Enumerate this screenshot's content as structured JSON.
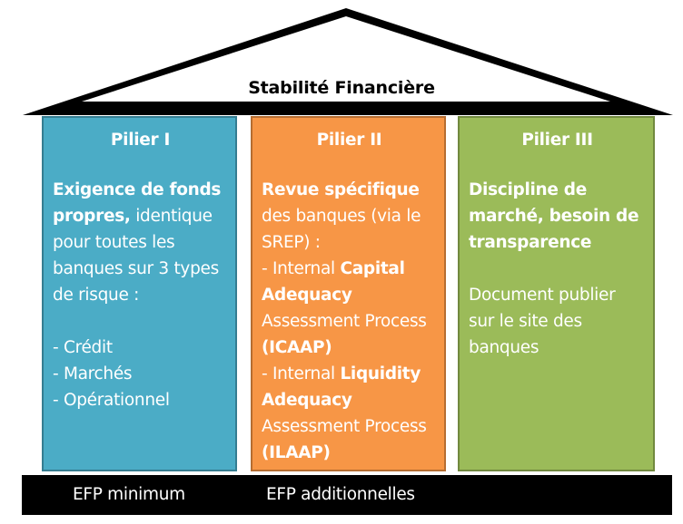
{
  "roof": {
    "title": "Stabilité Financière",
    "color": "#000000"
  },
  "pillars": [
    {
      "title": "Pilier I",
      "color": "#4bacc6",
      "bold_lead": "Exigence de fonds propres,",
      "text": " identique pour toutes les banques sur 3 types de risque :",
      "items": [
        "- Crédit",
        "- Marchés",
        "- Opérationnel"
      ]
    },
    {
      "title": "Pilier II",
      "color": "#f79646",
      "bold_lead": "Revue spécifique",
      "text": " des banques (via le SREP) :",
      "items": [
        {
          "prefix": "- Internal ",
          "bold1": "Capital Adequacy",
          "mid": " Assessment Process ",
          "bold2": "(ICAAP)"
        },
        {
          "prefix": "- Internal ",
          "bold1": "Liquidity Adequacy",
          "mid": " Assessment Process ",
          "bold2": "(ILAAP)"
        }
      ]
    },
    {
      "title": "Pilier III",
      "color": "#9bbb59",
      "bold_lead": "Discipline de marché, besoin de transparence",
      "text": "Document publier sur le site des banques"
    }
  ],
  "base": {
    "label_left": "EFP minimum",
    "label_right": "EFP additionnelles",
    "color": "#000000"
  }
}
